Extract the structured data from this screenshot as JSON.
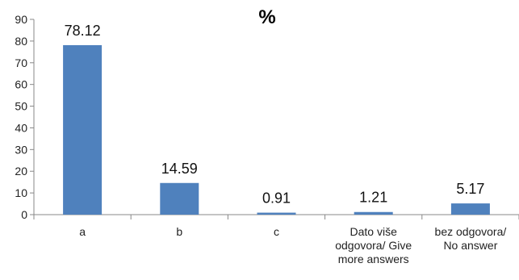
{
  "chart_data": {
    "type": "bar",
    "title": "%",
    "xlabel": "",
    "ylabel": "",
    "ylim": [
      0,
      90
    ],
    "yticks": [
      0,
      10,
      20,
      30,
      40,
      50,
      60,
      70,
      80,
      90
    ],
    "grid": false,
    "legend": "none",
    "categories": [
      "a",
      "b",
      "c",
      "Dato više odgovora/ Give more answers",
      "bez odgovora/ No answer"
    ],
    "category_lines": [
      [
        "a"
      ],
      [
        "b"
      ],
      [
        "c"
      ],
      [
        "Dato više",
        "odgovora/ Give",
        "more answers"
      ],
      [
        "bez odgovora/",
        "No answer"
      ]
    ],
    "values": [
      78.12,
      14.59,
      0.91,
      1.21,
      5.17
    ],
    "value_labels": [
      "78.12",
      "14.59",
      "0.91",
      "1.21",
      "5.17"
    ],
    "bar_color": "#4f81bd",
    "axis_color": "#888888"
  }
}
